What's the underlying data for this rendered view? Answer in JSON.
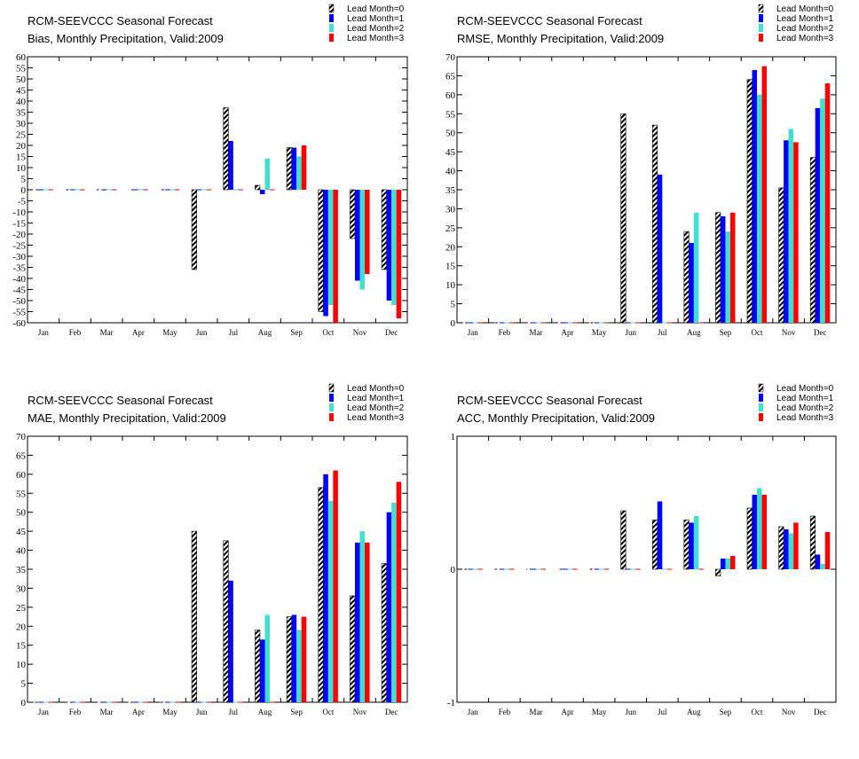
{
  "palette": {
    "lead0": "hatched-black",
    "lead1": "#0000ff",
    "lead2": "#40e0d0",
    "lead3": "#ff0000"
  },
  "chart_data": [
    {
      "type": "bar",
      "title": "RCM-SEEVCCC Seasonal Forecast",
      "subtitle": "Bias, Monthly Precipitation, Valid:2009",
      "xlabel": "",
      "ylabel": "",
      "categories": [
        "Jan",
        "Feb",
        "Mar",
        "Apr",
        "May",
        "Jun",
        "Jul",
        "Aug",
        "Sep",
        "Oct",
        "Nov",
        "Dec"
      ],
      "ylim": [
        -60,
        60
      ],
      "yticks": [
        -60,
        -55,
        -50,
        -45,
        -40,
        -35,
        -30,
        -25,
        -20,
        -15,
        -10,
        -5,
        0,
        5,
        10,
        15,
        20,
        25,
        30,
        35,
        40,
        45,
        50,
        55,
        60
      ],
      "legend_position": "top-right",
      "grid": false,
      "series": [
        {
          "name": "Lead Month=0",
          "values": [
            0,
            0,
            0,
            0,
            0,
            -36,
            37,
            2,
            19,
            -55,
            -22,
            -36
          ]
        },
        {
          "name": "Lead Month=1",
          "values": [
            0,
            0,
            0,
            0,
            0,
            0,
            22,
            -2,
            19,
            -57,
            -41,
            -50
          ]
        },
        {
          "name": "Lead Month=2",
          "values": [
            0,
            0,
            0,
            0,
            0,
            0,
            0,
            14,
            15,
            -52,
            -45,
            -52
          ]
        },
        {
          "name": "Lead Month=3",
          "values": [
            0,
            0,
            0,
            0,
            0,
            0,
            0,
            0,
            20,
            -60,
            -38,
            -58
          ]
        }
      ]
    },
    {
      "type": "bar",
      "title": "RCM-SEEVCCC Seasonal Forecast",
      "subtitle": "RMSE, Monthly Precipitation, Valid:2009",
      "xlabel": "",
      "ylabel": "",
      "categories": [
        "Jan",
        "Feb",
        "Mar",
        "Apr",
        "May",
        "Jun",
        "Jul",
        "Aug",
        "Sep",
        "Oct",
        "Nov",
        "Dec"
      ],
      "ylim": [
        0,
        70
      ],
      "yticks": [
        0,
        5,
        10,
        15,
        20,
        25,
        30,
        35,
        40,
        45,
        50,
        55,
        60,
        65,
        70
      ],
      "legend_position": "top-right",
      "grid": false,
      "series": [
        {
          "name": "Lead Month=0",
          "values": [
            0,
            0,
            0,
            0,
            0,
            55,
            52,
            24,
            29,
            64,
            35.5,
            43.5
          ]
        },
        {
          "name": "Lead Month=1",
          "values": [
            0,
            0,
            0,
            0,
            0,
            0,
            39,
            21,
            28,
            66.5,
            48,
            56.5
          ]
        },
        {
          "name": "Lead Month=2",
          "values": [
            0,
            0,
            0,
            0,
            0,
            0,
            0,
            29,
            24,
            60,
            51,
            59
          ]
        },
        {
          "name": "Lead Month=3",
          "values": [
            0,
            0,
            0,
            0,
            0,
            0,
            0,
            0,
            29,
            67.5,
            47.5,
            63
          ]
        }
      ]
    },
    {
      "type": "bar",
      "title": "RCM-SEEVCCC Seasonal Forecast",
      "subtitle": "MAE, Monthly Precipitation, Valid:2009",
      "xlabel": "",
      "ylabel": "",
      "categories": [
        "Jan",
        "Feb",
        "Mar",
        "Apr",
        "May",
        "Jun",
        "Jul",
        "Aug",
        "Sep",
        "Oct",
        "Nov",
        "Dec"
      ],
      "ylim": [
        0,
        70
      ],
      "yticks": [
        0,
        5,
        10,
        15,
        20,
        25,
        30,
        35,
        40,
        45,
        50,
        55,
        60,
        65,
        70
      ],
      "legend_position": "top-right",
      "grid": false,
      "series": [
        {
          "name": "Lead Month=0",
          "values": [
            0,
            0,
            0,
            0,
            0,
            45,
            42.5,
            19,
            22.5,
            56.5,
            28,
            36.5
          ]
        },
        {
          "name": "Lead Month=1",
          "values": [
            0,
            0,
            0,
            0,
            0,
            0,
            32,
            16.5,
            23,
            60,
            42,
            50
          ]
        },
        {
          "name": "Lead Month=2",
          "values": [
            0,
            0,
            0,
            0,
            0,
            0,
            0,
            23,
            19,
            53,
            45,
            52.5
          ]
        },
        {
          "name": "Lead Month=3",
          "values": [
            0,
            0,
            0,
            0,
            0,
            0,
            0,
            0,
            22.5,
            61,
            42,
            58
          ]
        }
      ]
    },
    {
      "type": "bar",
      "title": "RCM-SEEVCCC Seasonal Forecast",
      "subtitle": "ACC, Monthly Precipitation, Valid:2009",
      "xlabel": "",
      "ylabel": "",
      "categories": [
        "Jan",
        "Feb",
        "Mar",
        "Apr",
        "May",
        "Jun",
        "Jul",
        "Aug",
        "Sep",
        "Oct",
        "Nov",
        "Dec"
      ],
      "ylim": [
        -1,
        1
      ],
      "yticks": [
        -1,
        0,
        1
      ],
      "legend_position": "top-right",
      "grid": false,
      "series": [
        {
          "name": "Lead Month=0",
          "values": [
            0,
            0,
            0,
            0,
            0,
            0.44,
            0.37,
            0.37,
            -0.05,
            0.46,
            0.32,
            0.4
          ]
        },
        {
          "name": "Lead Month=1",
          "values": [
            0,
            0,
            0,
            0,
            0,
            0,
            0.51,
            0.35,
            0.08,
            0.56,
            0.3,
            0.11
          ]
        },
        {
          "name": "Lead Month=2",
          "values": [
            0,
            0,
            0,
            0,
            0,
            0,
            0,
            0.4,
            0.08,
            0.61,
            0.27,
            0.04
          ]
        },
        {
          "name": "Lead Month=3",
          "values": [
            0,
            0,
            0,
            0,
            0,
            0,
            0,
            0,
            0.1,
            0.56,
            0.35,
            0.28
          ]
        }
      ]
    }
  ]
}
